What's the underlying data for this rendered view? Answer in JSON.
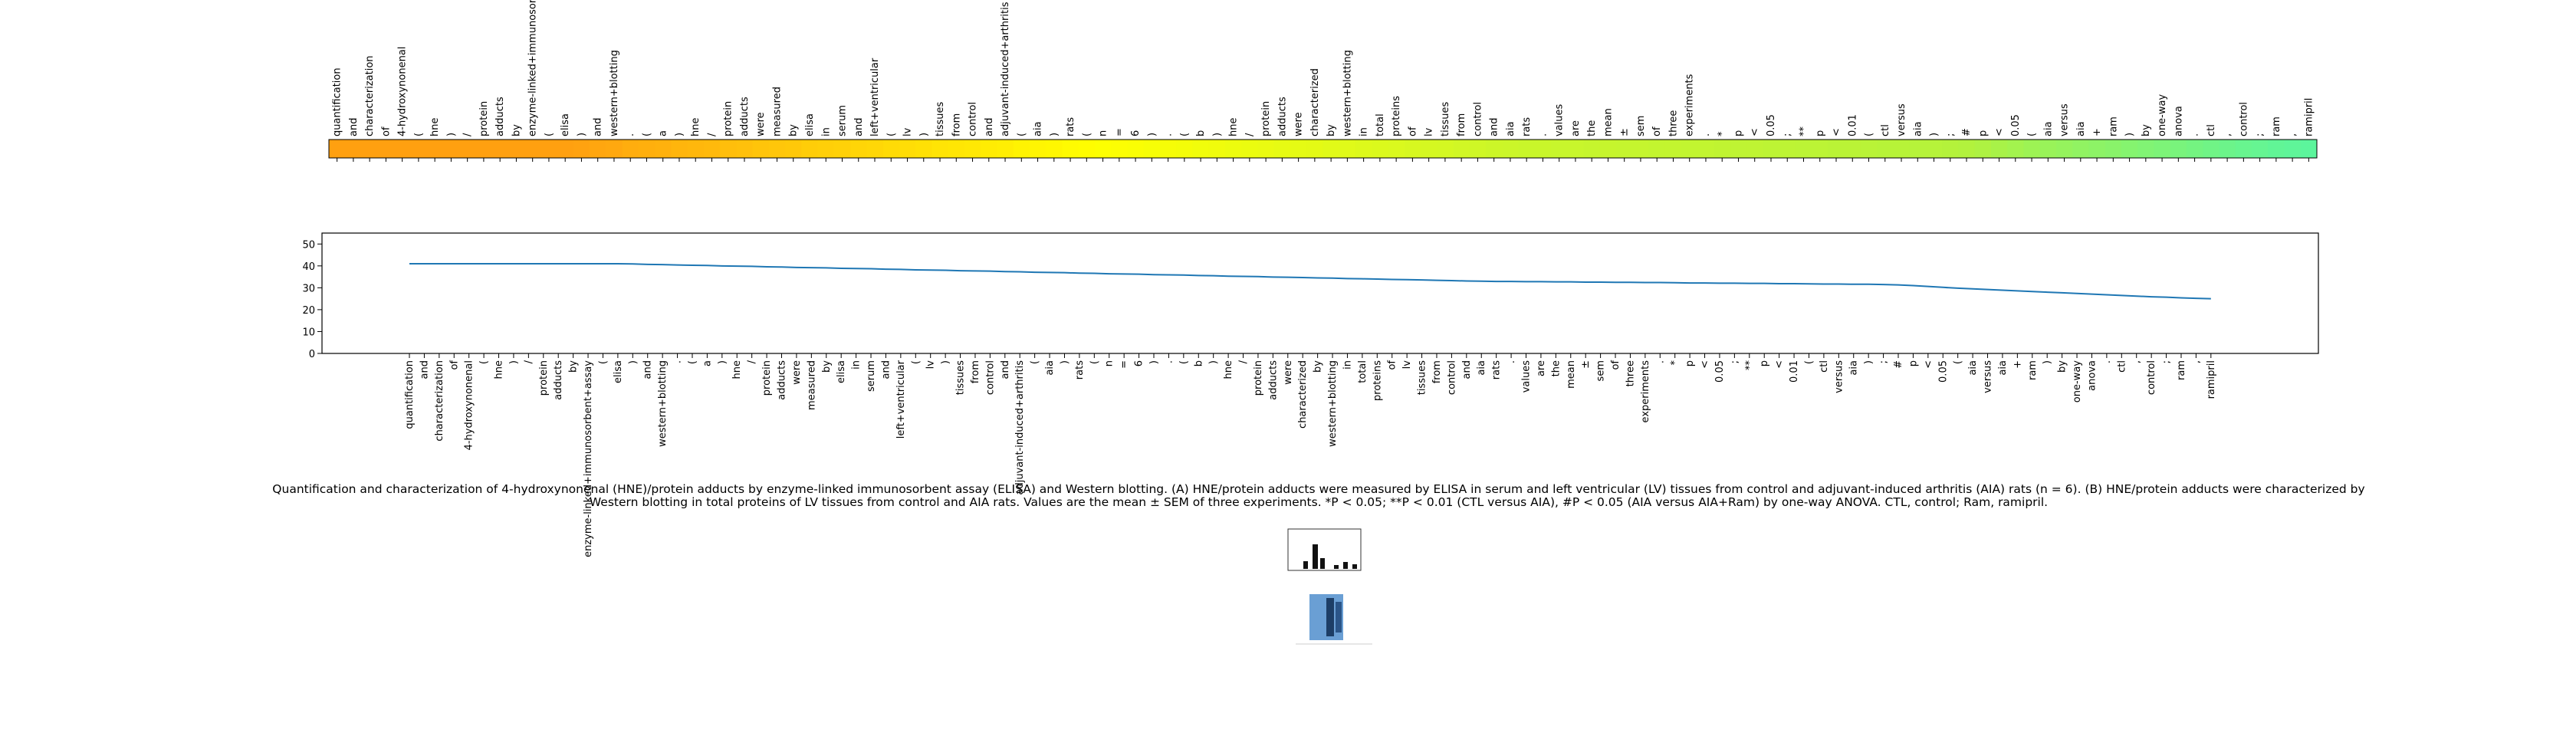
{
  "chart_data": {
    "type": "line",
    "token_labels_top": [
      "quantification",
      "and",
      "characterization",
      "of",
      "4-hydroxynonenal",
      "(",
      "hne",
      ")",
      "/",
      "protein",
      "adducts",
      "by",
      "enzyme-linked+immunosorbent",
      "(",
      "elisa",
      ")",
      "and",
      "western+blotting",
      ".",
      "(",
      "a",
      ")",
      "hne",
      "/",
      "protein",
      "adducts",
      "were",
      "measured",
      "by",
      "elisa",
      "in",
      "serum",
      "and",
      "left+ventricular",
      "(",
      "lv",
      ")",
      "tissues",
      "from",
      "control",
      "and",
      "adjuvant-induced+arthritis",
      "(",
      "aia",
      ")",
      "rats",
      "(",
      "n",
      "=",
      "6",
      ")",
      ".",
      "(",
      "b",
      ")",
      "hne",
      "/",
      "protein",
      "adducts",
      "were",
      "characterized",
      "by",
      "western+blotting",
      "in",
      "total",
      "proteins",
      "of",
      "lv",
      "tissues",
      "from",
      "control",
      "and",
      "aia",
      "rats",
      ".",
      "values",
      "are",
      "the",
      "mean",
      "±",
      "sem",
      "of",
      "three",
      "experiments",
      ".",
      "*",
      "p",
      "<",
      "0.05",
      ";",
      "**",
      "p",
      "<",
      "0.01",
      "(",
      "ctl",
      "versus",
      "aia",
      ")",
      ";",
      "#",
      "p",
      "<",
      "0.05",
      "(",
      "aia",
      "versus",
      "aia",
      "+",
      "ram",
      ")",
      "by",
      "one-way",
      "anova",
      ".",
      "ctl",
      ",",
      "control",
      ";",
      "ram",
      ",",
      "ramipril"
    ],
    "categories": [
      "quantification",
      "and",
      "characterization",
      "of",
      "4-hydroxynonenal",
      "(",
      "hne",
      ")",
      "/",
      "protein",
      "adducts",
      "by",
      "enzyme-linked+immunosorbent+assay",
      "(",
      "elisa",
      ")",
      "and",
      "western+blotting",
      ".",
      "(",
      "a",
      ")",
      "hne",
      "/",
      "protein",
      "adducts",
      "were",
      "measured",
      "by",
      "elisa",
      "in",
      "serum",
      "and",
      "left+ventricular",
      "(",
      "lv",
      ")",
      "tissues",
      "from",
      "control",
      "and",
      "adjuvant-induced+arthritis",
      "(",
      "aia",
      ")",
      "rats",
      "(",
      "n",
      "=",
      "6",
      ")",
      ".",
      "(",
      "b",
      ")",
      "hne",
      "/",
      "protein",
      "adducts",
      "were",
      "characterized",
      "by",
      "western+blotting",
      "in",
      "total",
      "proteins",
      "of",
      "lv",
      "tissues",
      "from",
      "control",
      "and",
      "aia",
      "rats",
      ".",
      "values",
      "are",
      "the",
      "mean",
      "±",
      "sem",
      "of",
      "three",
      "experiments",
      ".",
      "*",
      "p",
      "<",
      "0.05",
      ";",
      "**",
      "p",
      "<",
      "0.01",
      "(",
      "ctl",
      "versus",
      "aia",
      ")",
      ";",
      "#",
      "p",
      "<",
      "0.05",
      "(",
      "aia",
      "versus",
      "aia",
      "+",
      "ram",
      ")",
      "by",
      "one-way",
      "anova",
      ".",
      "ctl",
      ",",
      "control",
      ";",
      "ram",
      ",",
      "ramipril"
    ],
    "values": [
      41,
      41,
      41,
      41,
      41,
      41,
      41,
      41,
      41,
      41,
      41,
      41,
      41,
      41,
      41.0,
      40.9,
      40.7,
      40.6,
      40.4,
      40.3,
      40.2,
      40.0,
      39.9,
      39.8,
      39.6,
      39.5,
      39.3,
      39.2,
      39.1,
      38.9,
      38.8,
      38.7,
      38.5,
      38.4,
      38.2,
      38.1,
      38.0,
      37.8,
      37.7,
      37.6,
      37.4,
      37.3,
      37.1,
      37.0,
      36.9,
      36.7,
      36.6,
      36.4,
      36.3,
      36.2,
      36.0,
      35.9,
      35.8,
      35.6,
      35.5,
      35.3,
      35.2,
      35.1,
      34.9,
      34.8,
      34.7,
      34.5,
      34.4,
      34.2,
      34.1,
      34.0,
      33.8,
      33.7,
      33.6,
      33.4,
      33.3,
      33.1,
      33.0,
      32.9,
      32.9,
      32.8,
      32.8,
      32.7,
      32.7,
      32.6,
      32.6,
      32.5,
      32.5,
      32.4,
      32.4,
      32.3,
      32.2,
      32.2,
      32.1,
      32.1,
      32.0,
      32.0,
      31.9,
      31.9,
      31.8,
      31.7,
      31.7,
      31.6,
      31.6,
      31.5,
      31.3,
      31.0,
      30.6,
      30.2,
      29.8,
      29.5,
      29.2,
      28.9,
      28.6,
      28.3,
      28.0,
      27.7,
      27.4,
      27.1,
      26.8,
      26.5,
      26.2,
      25.9,
      25.7,
      25.4,
      25.2,
      25.0
    ],
    "color": "#1f77b4",
    "ylim": [
      0,
      55
    ],
    "yticks": [
      0,
      10,
      20,
      30,
      40,
      50
    ],
    "colormap": [
      [
        0,
        "#5cf59c"
      ],
      [
        0.4,
        "#b3f23c"
      ],
      [
        0.72,
        "#ffff00"
      ],
      [
        1,
        "#ffa010"
      ]
    ]
  },
  "caption": "Quantification and characterization of 4-hydroxynonenal (HNE)/protein adducts by enzyme-linked immunosorbent assay (ELISA) and Western blotting. (A) HNE/protein adducts were measured by ELISA in serum and left ventricular (LV) tissues from control and adjuvant-induced arthritis (AIA) rats (n = 6). (B) HNE/protein adducts were characterized by Western blotting in total proteins of LV tissues from control and AIA rats. Values are the mean ± SEM of three experiments. *P < 0.05; **P < 0.01 (CTL versus AIA), #P < 0.05 (AIA versus AIA+Ram) by one-way ANOVA. CTL, control; Ram, ramipril."
}
